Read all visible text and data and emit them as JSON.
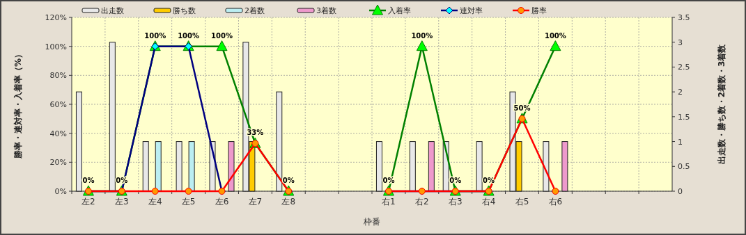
{
  "chart_data": {
    "type": "bar",
    "xlabel": "枠番",
    "ylabel": "勝率・連対率・入着率（%）",
    "y2label": "出走数・勝ち数・2着数・3着数",
    "categories": [
      "左2",
      "左3",
      "左4",
      "左5",
      "左6",
      "左7",
      "左8",
      null,
      null,
      "右1",
      "右2",
      "右3",
      "右4",
      "右5",
      "右6",
      null,
      null,
      null
    ],
    "ylim": [
      0,
      120
    ],
    "yticks": [
      {
        "value": 0,
        "label": "0%"
      },
      {
        "value": 20,
        "label": "20%"
      },
      {
        "value": 40,
        "label": "40%"
      },
      {
        "value": 60,
        "label": "60%"
      },
      {
        "value": 80,
        "label": "80%"
      },
      {
        "value": 100,
        "label": "100%"
      },
      {
        "value": 120,
        "label": "120%"
      }
    ],
    "y2lim": [
      0,
      3.5
    ],
    "y2ticks": [
      0,
      0.5,
      1,
      1.5,
      2,
      2.5,
      3,
      3.5
    ],
    "grid": true,
    "legend": "top",
    "series": [
      {
        "name": "出走数",
        "type": "bar",
        "axis": "y2",
        "color": "#e8e8e8",
        "values": [
          2,
          3,
          1,
          1,
          1,
          3,
          2,
          null,
          null,
          1,
          1,
          1,
          1,
          2,
          1,
          null,
          null,
          null
        ]
      },
      {
        "name": "勝ち数",
        "type": "bar",
        "axis": "y2",
        "color": "#ffcc00",
        "values": [
          0,
          0,
          0,
          0,
          0,
          1,
          0,
          null,
          null,
          0,
          0,
          0,
          0,
          1,
          0,
          null,
          null,
          null
        ]
      },
      {
        "name": "2着数",
        "type": "bar",
        "axis": "y2",
        "color": "#bbeef2",
        "values": [
          0,
          0,
          1,
          1,
          0,
          0,
          0,
          null,
          null,
          0,
          0,
          0,
          0,
          0,
          0,
          null,
          null,
          null
        ]
      },
      {
        "name": "3着数",
        "type": "bar",
        "axis": "y2",
        "color": "#ee99cc",
        "values": [
          0,
          0,
          0,
          0,
          1,
          0,
          0,
          null,
          null,
          0,
          1,
          0,
          0,
          0,
          1,
          null,
          null,
          null
        ]
      },
      {
        "name": "入着率",
        "type": "line",
        "axis": "y",
        "color": "#008000",
        "marker": "triangle",
        "values": [
          0,
          0,
          100,
          100,
          100,
          33,
          0,
          null,
          null,
          0,
          100,
          0,
          0,
          50,
          100,
          null,
          null,
          null
        ],
        "value_labels": [
          "0%",
          "0%",
          "100%",
          "100%",
          "100%",
          "33%",
          "0%",
          null,
          null,
          "0%",
          "100%",
          "0%",
          "0%",
          "50%",
          "100%",
          null,
          null,
          null
        ]
      },
      {
        "name": "連対率",
        "type": "line",
        "axis": "y",
        "color": "#000080",
        "marker": "diamond",
        "values": [
          0,
          0,
          100,
          100,
          0,
          null,
          0,
          null,
          null,
          0,
          0,
          0,
          0,
          null,
          0,
          null,
          null,
          null
        ]
      },
      {
        "name": "勝率",
        "type": "line",
        "axis": "y",
        "color": "#ff0000",
        "marker": "circle",
        "values": [
          0,
          0,
          0,
          0,
          0,
          33,
          0,
          null,
          null,
          0,
          0,
          0,
          0,
          50,
          0,
          null,
          null,
          null
        ]
      }
    ]
  }
}
